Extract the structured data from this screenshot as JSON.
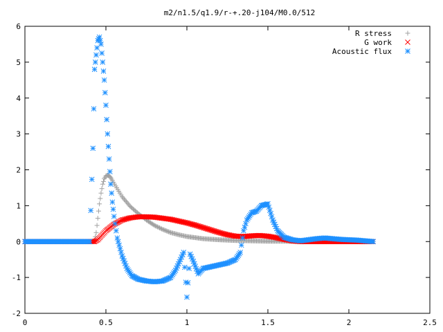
{
  "chart_data": {
    "type": "scatter",
    "title": "m2/n1.5/q1.9/r-+.20-j104/M0.0/512",
    "xlabel": "",
    "ylabel": "",
    "xlim": [
      0,
      2.5
    ],
    "ylim": [
      -2,
      6
    ],
    "x_ticks": [
      "0",
      "0.5",
      "1",
      "1.5",
      "2",
      "2.5"
    ],
    "y_ticks": [
      "-2",
      "-1",
      "0",
      "1",
      "2",
      "3",
      "4",
      "5",
      "6"
    ],
    "grid": false,
    "legend_position": "top-right",
    "series": [
      {
        "name": "R stress",
        "color": "#a0a0a0",
        "marker": "plus",
        "x": [
          0.0,
          0.1,
          0.2,
          0.3,
          0.4,
          0.43,
          0.44,
          0.45,
          0.46,
          0.47,
          0.48,
          0.49,
          0.5,
          0.51,
          0.52,
          0.53,
          0.54,
          0.56,
          0.58,
          0.6,
          0.65,
          0.7,
          0.75,
          0.8,
          0.85,
          0.9,
          0.95,
          1.0,
          1.1,
          1.2,
          1.3,
          1.4,
          1.5,
          1.6,
          1.7,
          1.8,
          1.9,
          2.0,
          2.15
        ],
        "y": [
          0.0,
          0.0,
          0.0,
          0.0,
          0.0,
          0.02,
          0.25,
          0.65,
          1.05,
          1.35,
          1.6,
          1.75,
          1.83,
          1.85,
          1.83,
          1.78,
          1.7,
          1.55,
          1.4,
          1.25,
          0.98,
          0.78,
          0.6,
          0.45,
          0.34,
          0.25,
          0.19,
          0.14,
          0.08,
          0.05,
          0.03,
          0.02,
          0.01,
          0.01,
          0.0,
          0.0,
          0.0,
          0.0,
          0.0
        ]
      },
      {
        "name": "G work",
        "color": "#ff0000",
        "marker": "cross",
        "x": [
          0.0,
          0.1,
          0.2,
          0.3,
          0.4,
          0.43,
          0.45,
          0.5,
          0.55,
          0.6,
          0.65,
          0.7,
          0.75,
          0.8,
          0.85,
          0.9,
          0.95,
          1.0,
          1.05,
          1.1,
          1.15,
          1.2,
          1.25,
          1.3,
          1.35,
          1.4,
          1.45,
          1.5,
          1.55,
          1.6,
          1.65,
          1.7,
          1.8,
          1.9,
          2.0,
          2.15
        ],
        "y": [
          0.0,
          0.0,
          0.0,
          0.0,
          0.0,
          0.0,
          0.05,
          0.3,
          0.48,
          0.6,
          0.66,
          0.69,
          0.69,
          0.68,
          0.65,
          0.62,
          0.57,
          0.52,
          0.46,
          0.39,
          0.32,
          0.25,
          0.19,
          0.15,
          0.14,
          0.16,
          0.17,
          0.15,
          0.11,
          0.06,
          0.02,
          0.0,
          0.0,
          0.0,
          0.0,
          0.0
        ]
      },
      {
        "name": "Acoustic flux",
        "color": "#1e90ff",
        "marker": "star",
        "x": [
          0.0,
          0.1,
          0.2,
          0.3,
          0.4,
          0.42,
          0.43,
          0.44,
          0.45,
          0.46,
          0.47,
          0.48,
          0.49,
          0.5,
          0.51,
          0.52,
          0.53,
          0.54,
          0.55,
          0.57,
          0.6,
          0.63,
          0.66,
          0.7,
          0.75,
          0.8,
          0.85,
          0.9,
          0.93,
          0.96,
          0.98,
          1.0,
          1.02,
          1.04,
          1.07,
          1.1,
          1.15,
          1.2,
          1.25,
          1.3,
          1.33,
          1.35,
          1.37,
          1.4,
          1.43,
          1.46,
          1.5,
          1.53,
          1.56,
          1.6,
          1.65,
          1.7,
          1.75,
          1.8,
          1.85,
          1.9,
          1.95,
          2.0,
          2.05,
          2.1,
          2.15
        ],
        "y": [
          0.0,
          0.0,
          0.0,
          0.0,
          0.0,
          2.6,
          4.8,
          5.2,
          5.6,
          5.7,
          5.5,
          5.0,
          4.5,
          3.8,
          3.0,
          2.3,
          1.6,
          1.1,
          0.7,
          0.1,
          -0.4,
          -0.75,
          -0.95,
          -1.05,
          -1.1,
          -1.12,
          -1.1,
          -1.0,
          -0.8,
          -0.5,
          -0.3,
          -1.55,
          -0.35,
          -0.55,
          -0.9,
          -0.75,
          -0.7,
          -0.65,
          -0.6,
          -0.5,
          -0.3,
          0.3,
          0.6,
          0.8,
          0.85,
          1.0,
          1.05,
          0.6,
          0.3,
          0.12,
          0.05,
          0.02,
          0.05,
          0.08,
          0.1,
          0.08,
          0.06,
          0.05,
          0.04,
          0.02,
          0.0
        ]
      }
    ]
  }
}
